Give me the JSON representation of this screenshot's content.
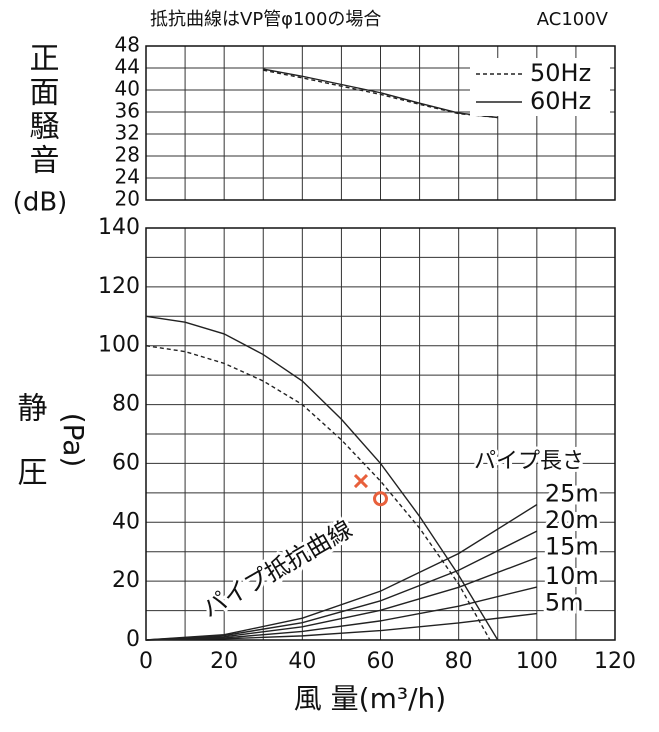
{
  "chart_data": [
    {
      "type": "line",
      "title": "抵抗曲線はVP管φ100の場合",
      "subtitle": "AC100V",
      "ylabel": "正面騒音",
      "ylabel_unit": "(dB)",
      "xlim": [
        0,
        120
      ],
      "ylim": [
        20,
        48
      ],
      "yticks": [
        20,
        24,
        28,
        32,
        36,
        40,
        44,
        48
      ],
      "xgrid": [
        0,
        10,
        20,
        30,
        40,
        50,
        60,
        70,
        80,
        90,
        100,
        110,
        120
      ],
      "grid": true,
      "legend": "top-right",
      "series": [
        {
          "name": "50Hz",
          "color": "#222222",
          "style": "dashed",
          "x": [
            30,
            40,
            50,
            60,
            70,
            80,
            90
          ],
          "values": [
            43.6,
            42.2,
            40.7,
            39.2,
            37.4,
            35.7,
            35
          ]
        },
        {
          "name": "60Hz",
          "color": "#222222",
          "style": "solid",
          "x": [
            30,
            40,
            50,
            60,
            70,
            80,
            90
          ],
          "values": [
            43.8,
            42.5,
            41,
            39.5,
            37.6,
            35.8,
            35
          ]
        }
      ]
    },
    {
      "type": "line",
      "ylabel": "静圧",
      "ylabel_unit": "(Pa)",
      "xlabel": "風 量(m³/h)",
      "xlim": [
        0,
        120
      ],
      "ylim": [
        0,
        140
      ],
      "xticks": [
        0,
        20,
        40,
        60,
        80,
        100,
        120
      ],
      "yticks": [
        0,
        20,
        40,
        60,
        80,
        100,
        120,
        140
      ],
      "xgrid": [
        0,
        10,
        20,
        30,
        40,
        50,
        60,
        70,
        80,
        90,
        100,
        110,
        120
      ],
      "ygrid": [
        0,
        10,
        20,
        30,
        40,
        50,
        60,
        70,
        80,
        90,
        100,
        110,
        120,
        130,
        140
      ],
      "grid": true,
      "annotation": "パイプ抵抗曲線",
      "pipe_title": "パイプ長さ",
      "series": [
        {
          "color": "#222222",
          "style": "dashed",
          "x": [
            0,
            10,
            20,
            30,
            40,
            50,
            60,
            70,
            80,
            88
          ],
          "values": [
            100,
            98,
            94,
            88,
            80,
            68,
            54,
            38,
            19,
            0
          ]
        },
        {
          "color": "#222222",
          "style": "solid",
          "x": [
            0,
            10,
            20,
            30,
            40,
            50,
            60,
            70,
            80,
            90
          ],
          "values": [
            110,
            108,
            104,
            97,
            88,
            75,
            60,
            42,
            22,
            0
          ]
        },
        {
          "name": "25m",
          "color": "#222222",
          "style": "solid",
          "x": [
            0,
            20,
            40,
            60,
            80,
            100
          ],
          "values": [
            0,
            1.8,
            7.4,
            16.6,
            29.4,
            46
          ]
        },
        {
          "name": "20m",
          "color": "#222222",
          "style": "solid",
          "x": [
            0,
            20,
            40,
            60,
            80,
            100
          ],
          "values": [
            0,
            1.5,
            5.9,
            13.3,
            23.7,
            37
          ]
        },
        {
          "name": "15m",
          "color": "#222222",
          "style": "solid",
          "x": [
            0,
            20,
            40,
            60,
            80,
            100
          ],
          "values": [
            0,
            1.1,
            4.5,
            10.1,
            17.9,
            28
          ]
        },
        {
          "name": "10m",
          "color": "#222222",
          "style": "solid",
          "x": [
            0,
            20,
            40,
            60,
            80,
            100
          ],
          "values": [
            0,
            0.7,
            2.9,
            6.5,
            11.5,
            18
          ]
        },
        {
          "name": "5m",
          "color": "#222222",
          "style": "solid",
          "x": [
            0,
            20,
            40,
            60,
            80,
            100
          ],
          "values": [
            0,
            0.4,
            1.4,
            3.2,
            5.8,
            9
          ]
        }
      ],
      "markers": [
        {
          "shape": "cross",
          "color": "#e8603c",
          "x": 55,
          "y": 54
        },
        {
          "shape": "circle",
          "color": "#e8603c",
          "x": 60,
          "y": 48
        }
      ]
    }
  ]
}
